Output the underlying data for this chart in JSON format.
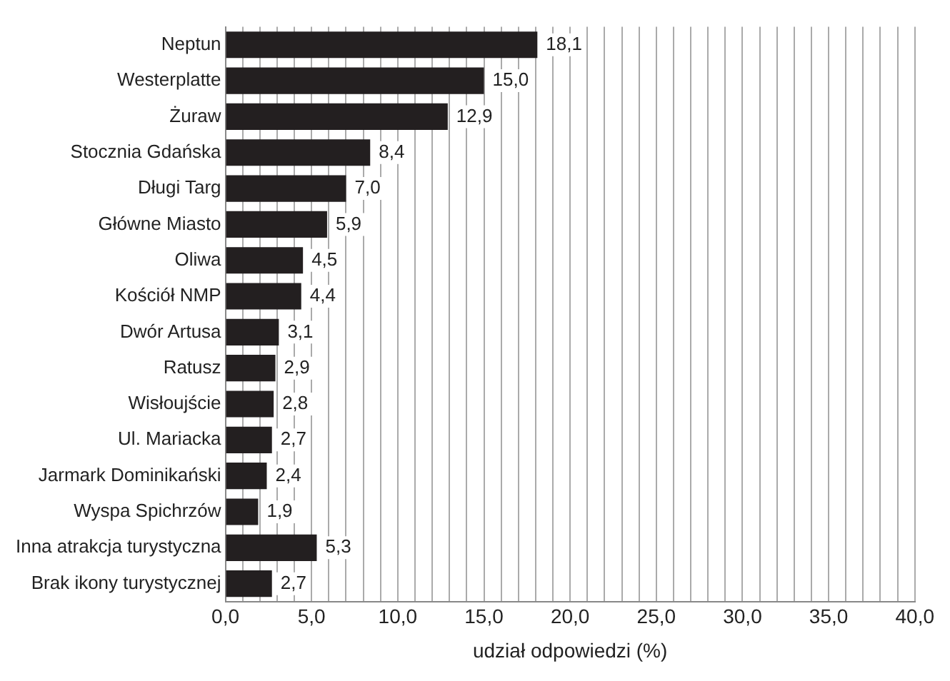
{
  "chart_data": {
    "type": "bar",
    "orientation": "horizontal",
    "xlabel": "udział odpowiedzi (%)",
    "categories": [
      "Neptun",
      "Westerplatte",
      "Żuraw",
      "Stocznia Gdańska",
      "Długi Targ",
      "Główne Miasto",
      "Oliwa",
      "Kościół NMP",
      "Dwór Artusa",
      "Ratusz",
      "Wisłoujście",
      "Ul. Mariacka",
      "Jarmark Dominikański",
      "Wyspa Spichrzów",
      "Inna atrakcja turystyczna",
      "Brak ikony turystycznej"
    ],
    "values": [
      18.1,
      15.0,
      12.9,
      8.4,
      7.0,
      5.9,
      4.5,
      4.4,
      3.1,
      2.9,
      2.8,
      2.7,
      2.4,
      1.9,
      5.3,
      2.7
    ],
    "value_labels": [
      "18,1",
      "15,0",
      "12,9",
      "8,4",
      "7,0",
      "5,9",
      "4,5",
      "4,4",
      "3,1",
      "2,9",
      "2,8",
      "2,7",
      "2,4",
      "1,9",
      "5,3",
      "2,7"
    ],
    "color": "#231f20",
    "xlim": [
      0,
      40
    ],
    "xticks": [
      {
        "value": 0,
        "label": "0,0"
      },
      {
        "value": 1,
        "label": null
      },
      {
        "value": 2,
        "label": null
      },
      {
        "value": 3,
        "label": null
      },
      {
        "value": 4,
        "label": null
      },
      {
        "value": 5,
        "label": "5,0"
      },
      {
        "value": 6,
        "label": null
      },
      {
        "value": 7,
        "label": null
      },
      {
        "value": 8,
        "label": null
      },
      {
        "value": 9,
        "label": null
      },
      {
        "value": 10,
        "label": "10,0"
      },
      {
        "value": 11,
        "label": null
      },
      {
        "value": 12,
        "label": null
      },
      {
        "value": 13,
        "label": null
      },
      {
        "value": 14,
        "label": null
      },
      {
        "value": 15,
        "label": "15,0"
      },
      {
        "value": 16,
        "label": null
      },
      {
        "value": 17,
        "label": null
      },
      {
        "value": 18,
        "label": null
      },
      {
        "value": 19,
        "label": null
      },
      {
        "value": 20,
        "label": "20,0"
      },
      {
        "value": 21,
        "label": null
      },
      {
        "value": 22,
        "label": null
      },
      {
        "value": 23,
        "label": null
      },
      {
        "value": 24,
        "label": null
      },
      {
        "value": 25,
        "label": "25,0"
      },
      {
        "value": 26,
        "label": null
      },
      {
        "value": 27,
        "label": null
      },
      {
        "value": 28,
        "label": null
      },
      {
        "value": 29,
        "label": null
      },
      {
        "value": 30,
        "label": "30,0"
      },
      {
        "value": 31,
        "label": null
      },
      {
        "value": 32,
        "label": null
      },
      {
        "value": 33,
        "label": null
      },
      {
        "value": 34,
        "label": null
      },
      {
        "value": 35,
        "label": "35,0"
      },
      {
        "value": 36,
        "label": null
      },
      {
        "value": 37,
        "label": null
      },
      {
        "value": 38,
        "label": null
      },
      {
        "value": 39,
        "label": null
      },
      {
        "value": 40,
        "label": "40,0"
      }
    ],
    "grid": "x",
    "legend": false
  }
}
